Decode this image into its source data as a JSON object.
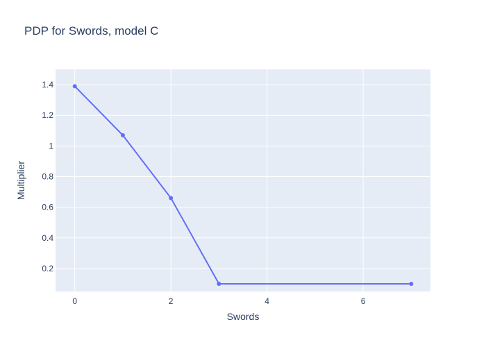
{
  "chart_data": {
    "type": "line",
    "title": "PDP for Swords, model C",
    "xlabel": "Swords",
    "ylabel": "Multiplier",
    "xlim": [
      -0.4,
      7.4
    ],
    "ylim": [
      0.05,
      1.5
    ],
    "x_ticks": [
      0,
      2,
      4,
      6
    ],
    "y_ticks": [
      0.2,
      0.4,
      0.6,
      0.8,
      1,
      1.2,
      1.4
    ],
    "grid": true,
    "series": [
      {
        "x": [
          0,
          1,
          2,
          3,
          7
        ],
        "y": [
          1.39,
          1.07,
          0.66,
          0.1,
          0.1
        ]
      }
    ],
    "colors": {
      "plot_bg": "#e5ecf6",
      "grid": "#ffffff",
      "line": "#636efa",
      "text": "#2a3f5f"
    }
  }
}
